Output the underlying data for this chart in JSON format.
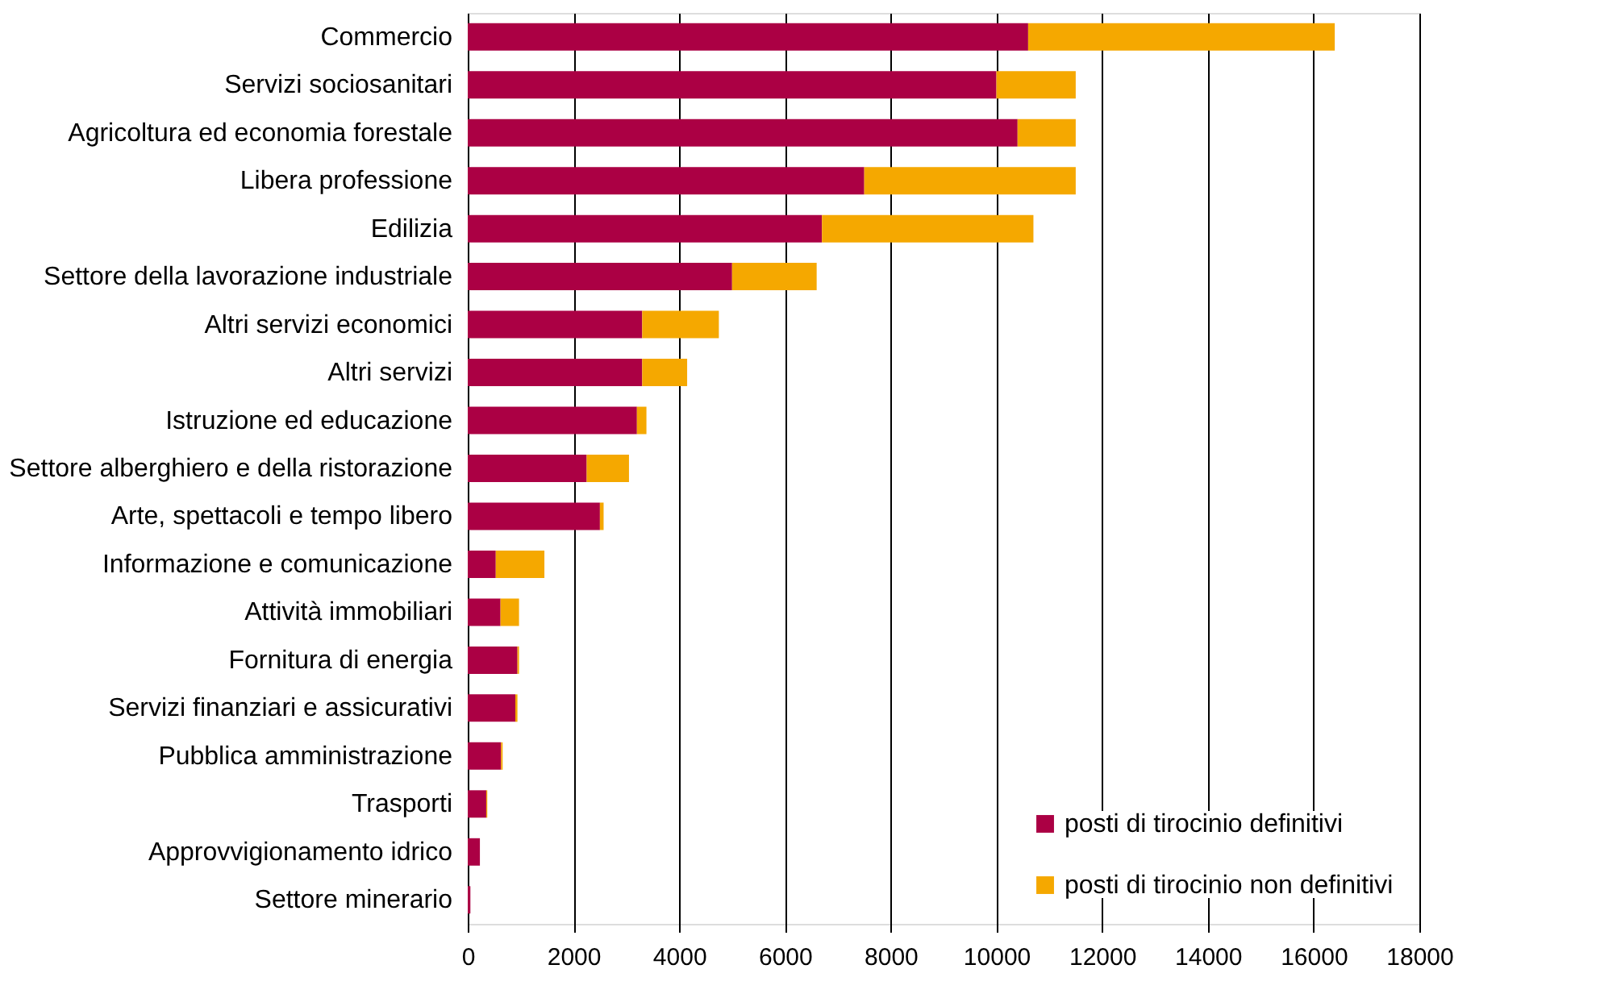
{
  "chart_data": {
    "type": "bar",
    "orientation": "horizontal",
    "stacked": true,
    "categories": [
      "Commercio",
      "Servizi sociosanitari",
      "Agricoltura ed economia forestale",
      "Libera professione",
      "Edilizia",
      "Settore della lavorazione industriale",
      "Altri servizi economici",
      "Altri servizi",
      "Istruzione ed educazione",
      "Settore alberghiero e della ristorazione",
      "Arte, spettacoli e tempo libero",
      "Informazione e comunicazione",
      "Attività immobiliari",
      "Fornitura di energia",
      "Servizi finanziari e assicurativi",
      "Pubblica amministrazione",
      "Trasporti",
      "Approvvigionamento idrico",
      "Settore minerario"
    ],
    "series": [
      {
        "name": "posti di tirocinio definitivi",
        "color": "#ab0044",
        "values": [
          10600,
          10000,
          10400,
          7500,
          6700,
          5000,
          3300,
          3300,
          3200,
          2250,
          2500,
          530,
          620,
          940,
          900,
          630,
          350,
          230,
          50
        ]
      },
      {
        "name": "posti di tirocinio non definitivi",
        "color": "#f5a800",
        "values": [
          5800,
          1500,
          1100,
          4000,
          4000,
          1600,
          1450,
          850,
          180,
          800,
          70,
          920,
          350,
          30,
          40,
          30,
          20,
          0,
          0
        ]
      }
    ],
    "xlim": [
      0,
      18000
    ],
    "xticks": [
      0,
      2000,
      4000,
      6000,
      8000,
      10000,
      12000,
      14000,
      16000,
      18000
    ],
    "grid": "x",
    "legend": "bottom right"
  }
}
